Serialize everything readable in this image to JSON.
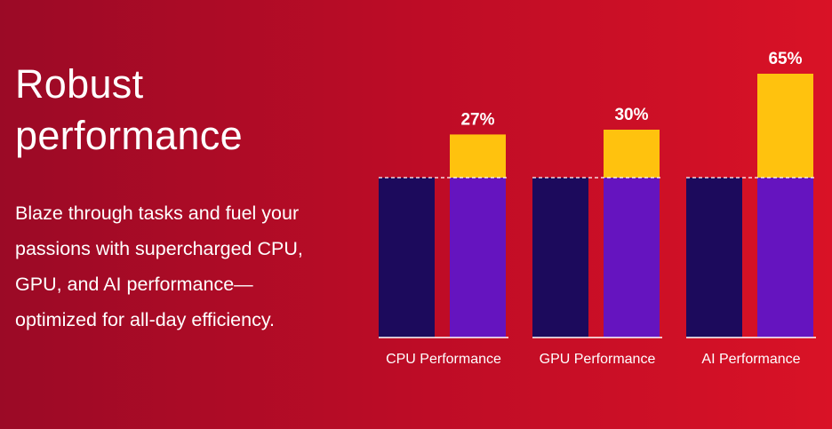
{
  "headline": {
    "line1": "Robust",
    "line2": "performance"
  },
  "description": {
    "lines": [
      "Blaze through tasks and fuel your",
      "passions with supercharged CPU,",
      "GPU, and AI performance—",
      "optimized for all-day efficiency."
    ]
  },
  "colors": {
    "baseline_bar": "#1c0a5c",
    "comparison_bar": "#6514bf",
    "uplift_segment": "#ffc20e",
    "reference_line": "#ffffff"
  },
  "chart_data": {
    "type": "bar",
    "categories": [
      "CPU Performance",
      "GPU Performance",
      "AI Performance"
    ],
    "series": [
      {
        "values": [
          100,
          100,
          100
        ]
      },
      {
        "values": [
          127,
          130,
          165
        ]
      }
    ],
    "uplift_labels": [
      "27%",
      "30%",
      "65%"
    ],
    "uplift_percent": [
      27,
      30,
      65
    ],
    "ylim": [
      0,
      170
    ],
    "grid": false,
    "legend": "none"
  }
}
